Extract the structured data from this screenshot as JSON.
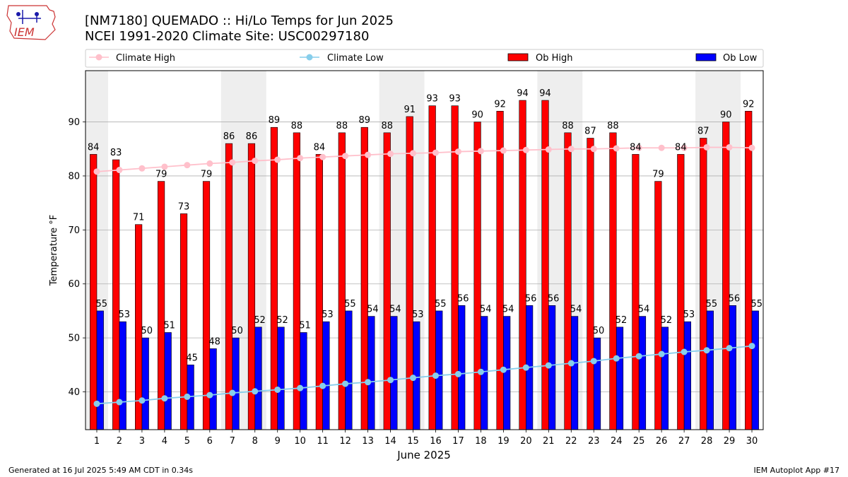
{
  "header": {
    "title_line1": "[NM7180] QUEMADO :: Hi/Lo Temps for Jun 2025",
    "title_line2": "NCEI 1991-2020 Climate Site: USC00297180",
    "logo_text": "IEM"
  },
  "footer": {
    "left": "Generated at 16 Jul 2025 5:49 AM CDT in 0.34s",
    "right": "IEM Autoplot App #17"
  },
  "colors": {
    "ob_high": "#ff0000",
    "ob_low": "#0000ff",
    "climate_high": "#ffc0cb",
    "climate_low": "#87ceeb",
    "weekend_band": "#eeeeee"
  },
  "chart_data": {
    "type": "bar",
    "xlabel": "June 2025",
    "ylabel": "Temperature °F",
    "ylim": [
      33,
      99.5
    ],
    "yticks": [
      40,
      50,
      60,
      70,
      80,
      90
    ],
    "grid": true,
    "legend_position": "top",
    "categories": [
      "1",
      "2",
      "3",
      "4",
      "5",
      "6",
      "7",
      "8",
      "9",
      "10",
      "11",
      "12",
      "13",
      "14",
      "15",
      "16",
      "17",
      "18",
      "19",
      "20",
      "21",
      "22",
      "23",
      "24",
      "25",
      "26",
      "27",
      "28",
      "29",
      "30"
    ],
    "weekend_days": [
      1,
      7,
      8,
      14,
      15,
      21,
      22,
      28,
      29
    ],
    "series": [
      {
        "name": "Ob High",
        "kind": "bar",
        "values": [
          84,
          83,
          71,
          79,
          73,
          79,
          86,
          86,
          89,
          88,
          84,
          88,
          89,
          88,
          91,
          93,
          93,
          90,
          92,
          94,
          94,
          88,
          87,
          88,
          84,
          79,
          84,
          87,
          90,
          92
        ]
      },
      {
        "name": "Ob Low",
        "kind": "bar",
        "values": [
          55,
          53,
          50,
          51,
          45,
          48,
          50,
          52,
          52,
          51,
          53,
          55,
          54,
          54,
          53,
          55,
          56,
          54,
          54,
          56,
          56,
          54,
          50,
          52,
          54,
          52,
          53,
          55,
          56,
          55
        ]
      },
      {
        "name": "Climate High",
        "kind": "line",
        "values": [
          80.8,
          81.1,
          81.4,
          81.7,
          82.0,
          82.3,
          82.5,
          82.8,
          83.0,
          83.3,
          83.5,
          83.7,
          83.9,
          84.1,
          84.2,
          84.3,
          84.5,
          84.6,
          84.7,
          84.8,
          84.9,
          85.0,
          85.0,
          85.1,
          85.2,
          85.2,
          85.2,
          85.3,
          85.3,
          85.2
        ]
      },
      {
        "name": "Climate Low",
        "kind": "line",
        "values": [
          37.8,
          38.1,
          38.4,
          38.8,
          39.1,
          39.4,
          39.8,
          40.1,
          40.4,
          40.7,
          41.1,
          41.5,
          41.8,
          42.2,
          42.6,
          43.0,
          43.3,
          43.7,
          44.1,
          44.5,
          44.9,
          45.3,
          45.7,
          46.2,
          46.6,
          47.0,
          47.4,
          47.7,
          48.1,
          48.5
        ]
      }
    ]
  }
}
